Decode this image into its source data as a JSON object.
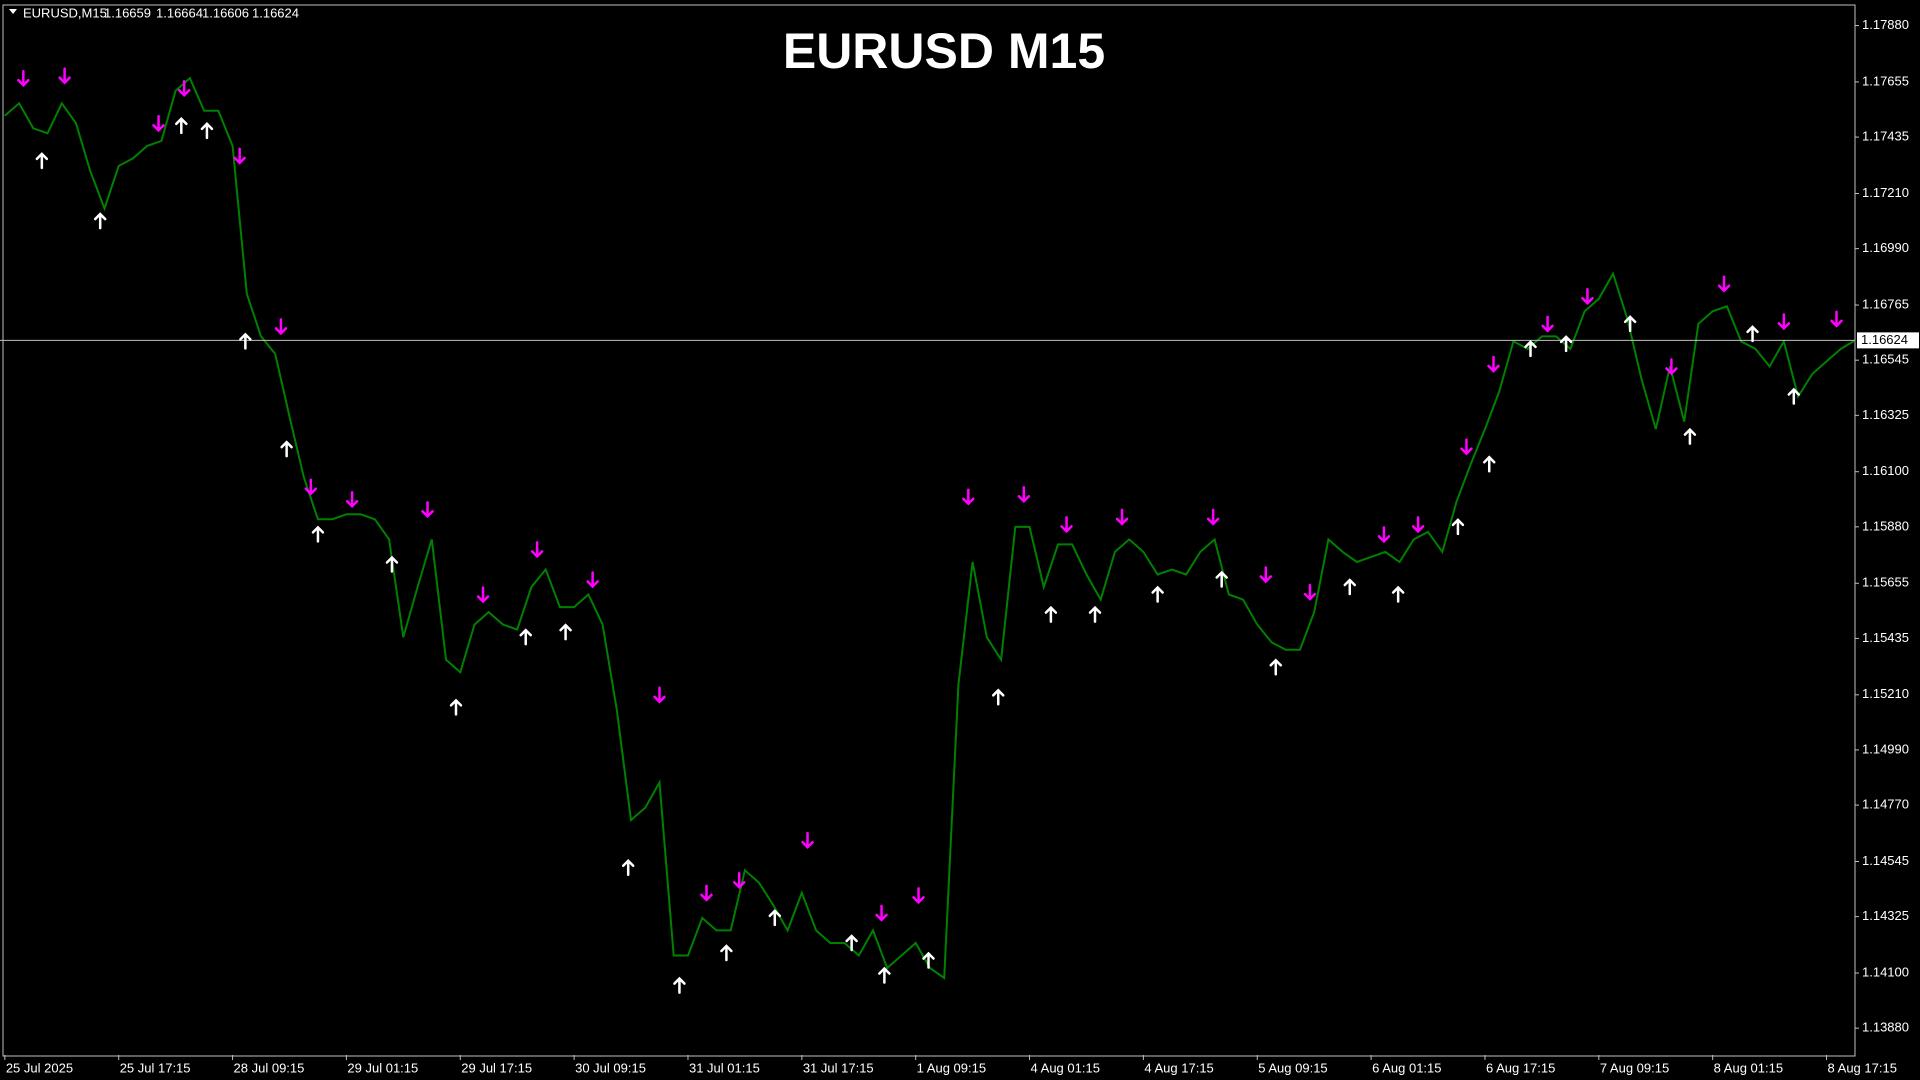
{
  "chart_data": {
    "type": "line",
    "title": "EURUSD M15",
    "header": "EURUSD,M15",
    "ohlc": [
      1.16659,
      1.16664,
      1.16606,
      1.16624
    ],
    "current_price": 1.16624,
    "color": "#008000",
    "values": [
      1.1752,
      1.1757,
      1.1747,
      1.1745,
      1.1757,
      1.1749,
      1.173,
      1.1715,
      1.1732,
      1.1735,
      1.174,
      1.1742,
      1.1762,
      1.1767,
      1.1754,
      1.1754,
      1.174,
      1.1681,
      1.1664,
      1.1657,
      1.1632,
      1.1608,
      1.1591,
      1.1591,
      1.1593,
      1.1593,
      1.1591,
      1.1583,
      1.1544,
      1.1564,
      1.1583,
      1.1535,
      1.153,
      1.1549,
      1.1554,
      1.1549,
      1.1547,
      1.1564,
      1.1571,
      1.1556,
      1.1556,
      1.1561,
      1.1549,
      1.1515,
      1.1471,
      1.1476,
      1.1486,
      1.1417,
      1.1417,
      1.1432,
      1.1427,
      1.1427,
      1.1451,
      1.1446,
      1.1437,
      1.1427,
      1.1442,
      1.1427,
      1.1422,
      1.1422,
      1.1417,
      1.1427,
      1.1412,
      1.1417,
      1.1422,
      1.1412,
      1.1408,
      1.1525,
      1.1574,
      1.1544,
      1.1535,
      1.1588,
      1.1588,
      1.1564,
      1.1581,
      1.1581,
      1.1569,
      1.1559,
      1.1578,
      1.1583,
      1.1578,
      1.1569,
      1.1571,
      1.1569,
      1.1578,
      1.1583,
      1.1561,
      1.1559,
      1.1549,
      1.1542,
      1.1539,
      1.1539,
      1.1554,
      1.1583,
      1.1578,
      1.1574,
      1.1576,
      1.1578,
      1.1574,
      1.1583,
      1.1586,
      1.1578,
      1.1598,
      1.1613,
      1.1627,
      1.1642,
      1.1662,
      1.1659,
      1.1664,
      1.1664,
      1.1659,
      1.1674,
      1.1679,
      1.1689,
      1.1671,
      1.1647,
      1.1627,
      1.1652,
      1.163,
      1.1669,
      1.1674,
      1.1676,
      1.1662,
      1.1659,
      1.1652,
      1.1662,
      1.164,
      1.1649,
      1.1654,
      1.1659,
      1.16624
    ],
    "down_arrows": {
      "color": "#ff00ff",
      "x": [
        1.3,
        4.2,
        10.8,
        12.6,
        16.5,
        19.4,
        21.5,
        24.4,
        29.7,
        33.6,
        37.4,
        41.3,
        46.0,
        49.3,
        51.6,
        56.4,
        61.6,
        64.2,
        67.7,
        71.6,
        74.6,
        78.5,
        84.9,
        88.6,
        91.7,
        96.9,
        99.3,
        102.7,
        104.6,
        108.4,
        111.2,
        117.1,
        120.8,
        125.0,
        128.7
      ],
      "values": [
        1.1767,
        1.1768,
        1.1749,
        1.1763,
        1.1736,
        1.1668,
        1.1604,
        1.1599,
        1.1595,
        1.1561,
        1.1579,
        1.1567,
        1.1521,
        1.1442,
        1.1447,
        1.1463,
        1.1434,
        1.1441,
        1.16,
        1.1601,
        1.1589,
        1.1592,
        1.1592,
        1.1569,
        1.1562,
        1.1585,
        1.1589,
        1.162,
        1.1653,
        1.1669,
        1.168,
        1.1652,
        1.1685,
        1.167,
        1.1671
      ]
    },
    "up_arrows": {
      "color": "#ffffff",
      "x": [
        2.6,
        6.7,
        12.4,
        14.2,
        16.9,
        19.8,
        22.0,
        27.2,
        31.7,
        36.6,
        39.4,
        43.8,
        47.4,
        50.7,
        54.1,
        59.5,
        61.8,
        64.9,
        69.8,
        73.5,
        76.6,
        81.0,
        85.5,
        89.3,
        94.5,
        97.9,
        102.1,
        104.3,
        107.2,
        109.7,
        114.2,
        118.4,
        122.8,
        125.7
      ],
      "values": [
        1.1734,
        1.171,
        1.1748,
        1.1746,
        1.1662,
        1.1619,
        1.1585,
        1.1573,
        1.1516,
        1.1544,
        1.1546,
        1.1452,
        1.1405,
        1.1418,
        1.1432,
        1.1422,
        1.1409,
        1.1415,
        1.152,
        1.1553,
        1.1553,
        1.1561,
        1.1567,
        1.1532,
        1.1564,
        1.1561,
        1.1588,
        1.1613,
        1.1659,
        1.1661,
        1.1669,
        1.1624,
        1.1665,
        1.164
      ]
    },
    "xlim": [
      -0.34,
      130
    ],
    "xticks": [
      {
        "value": 0,
        "label": "25 Jul 2025"
      },
      {
        "value": 8,
        "label": "25 Jul 17:15"
      },
      {
        "value": 16,
        "label": "28 Jul 09:15"
      },
      {
        "value": 24,
        "label": "29 Jul 01:15"
      },
      {
        "value": 32,
        "label": "29 Jul 17:15"
      },
      {
        "value": 40,
        "label": "30 Jul 09:15"
      },
      {
        "value": 48,
        "label": "31 Jul 01:15"
      },
      {
        "value": 56,
        "label": "31 Jul 17:15"
      },
      {
        "value": 64,
        "label": "1 Aug 09:15"
      },
      {
        "value": 72,
        "label": "4 Aug 01:15"
      },
      {
        "value": 80,
        "label": "4 Aug 17:15"
      },
      {
        "value": 88,
        "label": "5 Aug 09:15"
      },
      {
        "value": 96,
        "label": "6 Aug 01:15"
      },
      {
        "value": 104,
        "label": "6 Aug 17:15"
      },
      {
        "value": 112,
        "label": "7 Aug 09:15"
      },
      {
        "value": 120,
        "label": "8 Aug 01:15"
      },
      {
        "value": 128,
        "label": "8 Aug 17:15"
      }
    ],
    "ylim": [
      1.13773,
      1.17958
    ],
    "yticks": [
      {
        "value": 1.1788,
        "label": "1.17880"
      },
      1.17655,
      1.17435,
      {
        "value": 1.1721,
        "label": "1.17210"
      },
      {
        "value": 1.1699,
        "label": "1.16990"
      },
      1.16765,
      1.16545,
      1.16325,
      {
        "value": 1.161,
        "label": "1.16100"
      },
      {
        "value": 1.1588,
        "label": "1.15880"
      },
      1.15655,
      1.15435,
      {
        "value": 1.1521,
        "label": "1.15210"
      },
      {
        "value": 1.1499,
        "label": "1.14990"
      },
      {
        "value": 1.1477,
        "label": "1.14770"
      },
      1.14545,
      1.14325,
      {
        "value": 1.141,
        "label": "1.14100"
      },
      {
        "value": 1.1388,
        "label": "1.13880"
      }
    ]
  }
}
